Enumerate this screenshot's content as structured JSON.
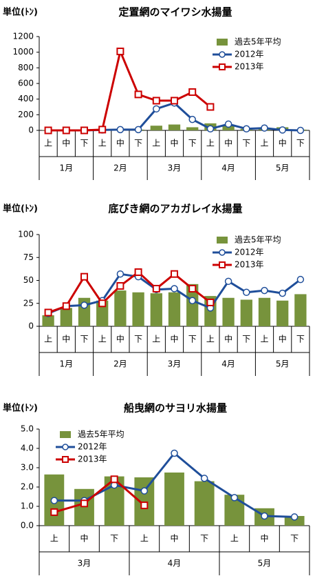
{
  "chart_data": [
    {
      "type": "bar",
      "title": "定置網のマイワシ水揚量",
      "unit": "単位(ﾄﾝ)",
      "categories": [
        "上",
        "中",
        "下",
        "上",
        "中",
        "下",
        "上",
        "中",
        "下",
        "上",
        "中",
        "下",
        "上",
        "中",
        "下"
      ],
      "groups": [
        "1月",
        "2月",
        "3月",
        "4月",
        "5月"
      ],
      "ylim": [
        0,
        1200
      ],
      "yticks": [
        0,
        200,
        400,
        600,
        800,
        1000,
        1200
      ],
      "legend": "upper right",
      "series": [
        {
          "name": "過去5年平均",
          "type": "bar",
          "color": "#77933c",
          "values": [
            5,
            5,
            5,
            5,
            5,
            10,
            60,
            75,
            40,
            90,
            60,
            20,
            20,
            40,
            10
          ]
        },
        {
          "name": "2012年",
          "type": "line",
          "marker": "circle",
          "color": "#1f4e9a",
          "values": [
            0,
            0,
            0,
            5,
            10,
            10,
            275,
            350,
            140,
            20,
            80,
            20,
            30,
            5,
            0
          ]
        },
        {
          "name": "2013年",
          "type": "line",
          "marker": "square",
          "color": "#cc0000",
          "values": [
            0,
            0,
            0,
            10,
            1010,
            460,
            380,
            380,
            490,
            300,
            null,
            null,
            null,
            null,
            null
          ]
        }
      ]
    },
    {
      "type": "bar",
      "title": "底びき網のアカガレイ水揚量",
      "unit": "単位(ﾄﾝ)",
      "categories": [
        "上",
        "中",
        "下",
        "上",
        "中",
        "下",
        "上",
        "中",
        "下",
        "上",
        "中",
        "下",
        "上",
        "中",
        "下"
      ],
      "groups": [
        "1月",
        "2月",
        "3月",
        "4月",
        "5月"
      ],
      "ylim": [
        0,
        100
      ],
      "yticks": [
        0,
        25,
        50,
        75,
        100
      ],
      "legend": "upper right",
      "series": [
        {
          "name": "過去5年平均",
          "type": "bar",
          "color": "#77933c",
          "values": [
            12,
            20,
            31,
            28,
            39,
            37,
            36,
            37,
            46,
            33,
            31,
            29,
            31,
            28,
            35
          ]
        },
        {
          "name": "2012年",
          "type": "line",
          "marker": "circle",
          "color": "#1f4e9a",
          "values": [
            14,
            22,
            23,
            28,
            57,
            54,
            40,
            41,
            28,
            20,
            49,
            37,
            39,
            36,
            51
          ]
        },
        {
          "name": "2013年",
          "type": "line",
          "marker": "square",
          "color": "#cc0000",
          "values": [
            15,
            22,
            54,
            25,
            44,
            59,
            41,
            57,
            41,
            26,
            null,
            null,
            null,
            null,
            null
          ]
        }
      ]
    },
    {
      "type": "bar",
      "title": "船曳網のサヨリ水揚量",
      "unit": "単位(ﾄﾝ)",
      "categories": [
        "上",
        "中",
        "下",
        "上",
        "中",
        "下",
        "上",
        "中",
        "下"
      ],
      "groups": [
        "3月",
        "4月",
        "5月"
      ],
      "ylim": [
        0,
        5
      ],
      "yticks": [
        {
          "value": 0,
          "label": "0.0"
        },
        {
          "value": 1,
          "label": "1.0"
        },
        {
          "value": 2,
          "label": "2.0"
        },
        {
          "value": 3,
          "label": "3.0"
        },
        {
          "value": 4,
          "label": "4.0"
        },
        {
          "value": 5,
          "label": "5.0"
        }
      ],
      "legend": "upper left",
      "series": [
        {
          "name": "過去5年平均",
          "type": "bar",
          "color": "#77933c",
          "values": [
            2.65,
            1.9,
            2.55,
            2.5,
            2.75,
            2.3,
            1.6,
            0.9,
            0.5
          ]
        },
        {
          "name": "2012年",
          "type": "line",
          "marker": "circle",
          "color": "#1f4e9a",
          "values": [
            1.3,
            1.3,
            2.1,
            1.8,
            3.75,
            2.45,
            1.45,
            0.5,
            0.45
          ]
        },
        {
          "name": "2013年",
          "type": "line",
          "marker": "square",
          "color": "#cc0000",
          "values": [
            0.7,
            1.15,
            2.4,
            1.05,
            null,
            null,
            null,
            null,
            null
          ]
        }
      ]
    }
  ]
}
